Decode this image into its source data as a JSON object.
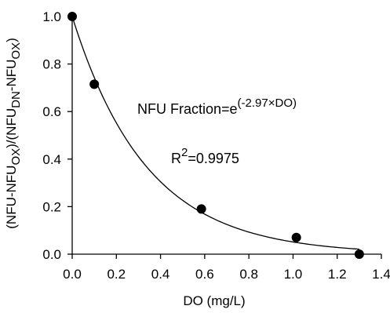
{
  "chart_data": {
    "type": "scatter",
    "xlabel": "DO (mg/L)",
    "ylabel_parts": [
      "(NFU-NFU",
      "OX",
      ")/(NFU",
      "DN",
      "-NFU",
      "OX",
      ")"
    ],
    "xlim": [
      0.0,
      1.4
    ],
    "ylim": [
      0.0,
      1.0
    ],
    "x_ticks": [
      "0.0",
      "0.2",
      "0.4",
      "0.6",
      "0.8",
      "1.0",
      "1.2",
      "1.4"
    ],
    "y_ticks": [
      "0.0",
      "0.2",
      "0.4",
      "0.6",
      "0.8",
      "1.0"
    ],
    "grid": false,
    "series": [
      {
        "type": "scatter",
        "points": [
          {
            "x": 0.0,
            "y": 1.0
          },
          {
            "x": 0.1,
            "y": 0.715
          },
          {
            "x": 0.585,
            "y": 0.19
          },
          {
            "x": 1.015,
            "y": 0.07
          },
          {
            "x": 1.3,
            "y": 0.0
          }
        ]
      },
      {
        "type": "line",
        "function": "exp",
        "coefficient": -2.97,
        "domain": [
          0.0,
          1.3
        ]
      }
    ],
    "annotations": {
      "equation_base": "NFU Fraction=e",
      "equation_exponent": "(-2.97×DO)",
      "r2_base": "R",
      "r2_sup": "2",
      "r2_value": "=0.9975"
    }
  }
}
